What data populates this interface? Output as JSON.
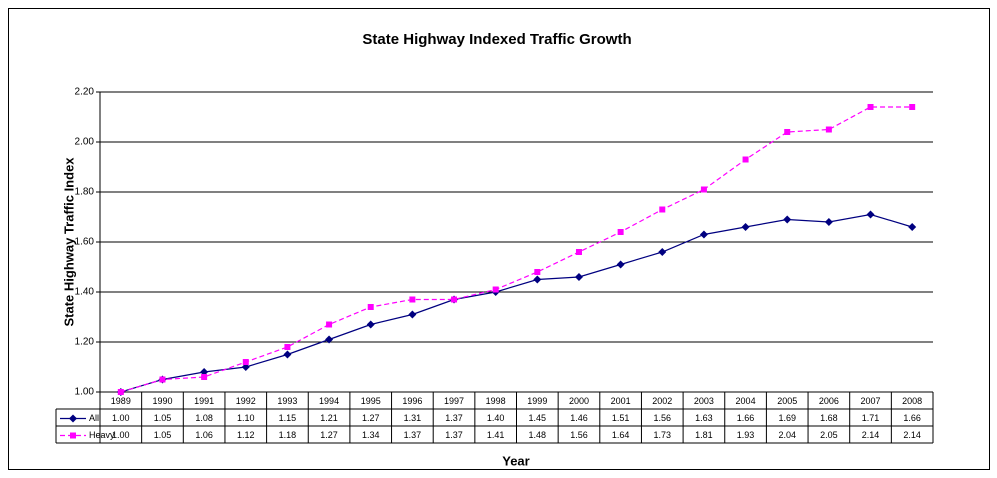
{
  "chart_data": {
    "type": "line",
    "title": "State Highway Indexed Traffic Growth",
    "x_label": "Year",
    "y_label": "State Highway Traffic Index",
    "categories": [
      "1989",
      "1990",
      "1991",
      "1992",
      "1993",
      "1994",
      "1995",
      "1996",
      "1997",
      "1998",
      "1999",
      "2000",
      "2001",
      "2002",
      "2003",
      "2004",
      "2005",
      "2006",
      "2007",
      "2008"
    ],
    "series": [
      {
        "name": "All",
        "color": "#000080",
        "marker": "diamond",
        "dashed": false,
        "values": [
          1.0,
          1.05,
          1.08,
          1.1,
          1.15,
          1.21,
          1.27,
          1.31,
          1.37,
          1.4,
          1.45,
          1.46,
          1.51,
          1.56,
          1.63,
          1.66,
          1.69,
          1.68,
          1.71,
          1.66
        ],
        "value_labels": [
          "1.00",
          "1.05",
          "1.08",
          "1.10",
          "1.15",
          "1.21",
          "1.27",
          "1.31",
          "1.37",
          "1.40",
          "1.45",
          "1.46",
          "1.51",
          "1.56",
          "1.63",
          "1.66",
          "1.69",
          "1.68",
          "1.71",
          "1.66"
        ]
      },
      {
        "name": "Heavy",
        "color": "#ff00ff",
        "marker": "square",
        "dashed": true,
        "values": [
          1.0,
          1.05,
          1.06,
          1.12,
          1.18,
          1.27,
          1.34,
          1.37,
          1.37,
          1.41,
          1.48,
          1.56,
          1.64,
          1.73,
          1.81,
          1.93,
          2.04,
          2.05,
          2.14,
          2.14
        ],
        "value_labels": [
          "1.00",
          "1.05",
          "1.06",
          "1.12",
          "1.18",
          "1.27",
          "1.34",
          "1.37",
          "1.37",
          "1.41",
          "1.48",
          "1.56",
          "1.64",
          "1.73",
          "1.81",
          "1.93",
          "2.04",
          "2.05",
          "2.14",
          "2.14"
        ]
      }
    ],
    "ylim": [
      1.0,
      2.2
    ],
    "yticks": [
      {
        "value": 1.0,
        "label": "1.00"
      },
      {
        "value": 1.2,
        "label": "1.20"
      },
      {
        "value": 1.4,
        "label": "1.40"
      },
      {
        "value": 1.6,
        "label": "1.60"
      },
      {
        "value": 1.8,
        "label": "1.80"
      },
      {
        "value": 2.0,
        "label": "2.00"
      },
      {
        "value": 2.2,
        "label": "2.20"
      }
    ],
    "grid": true,
    "data_table": true
  }
}
